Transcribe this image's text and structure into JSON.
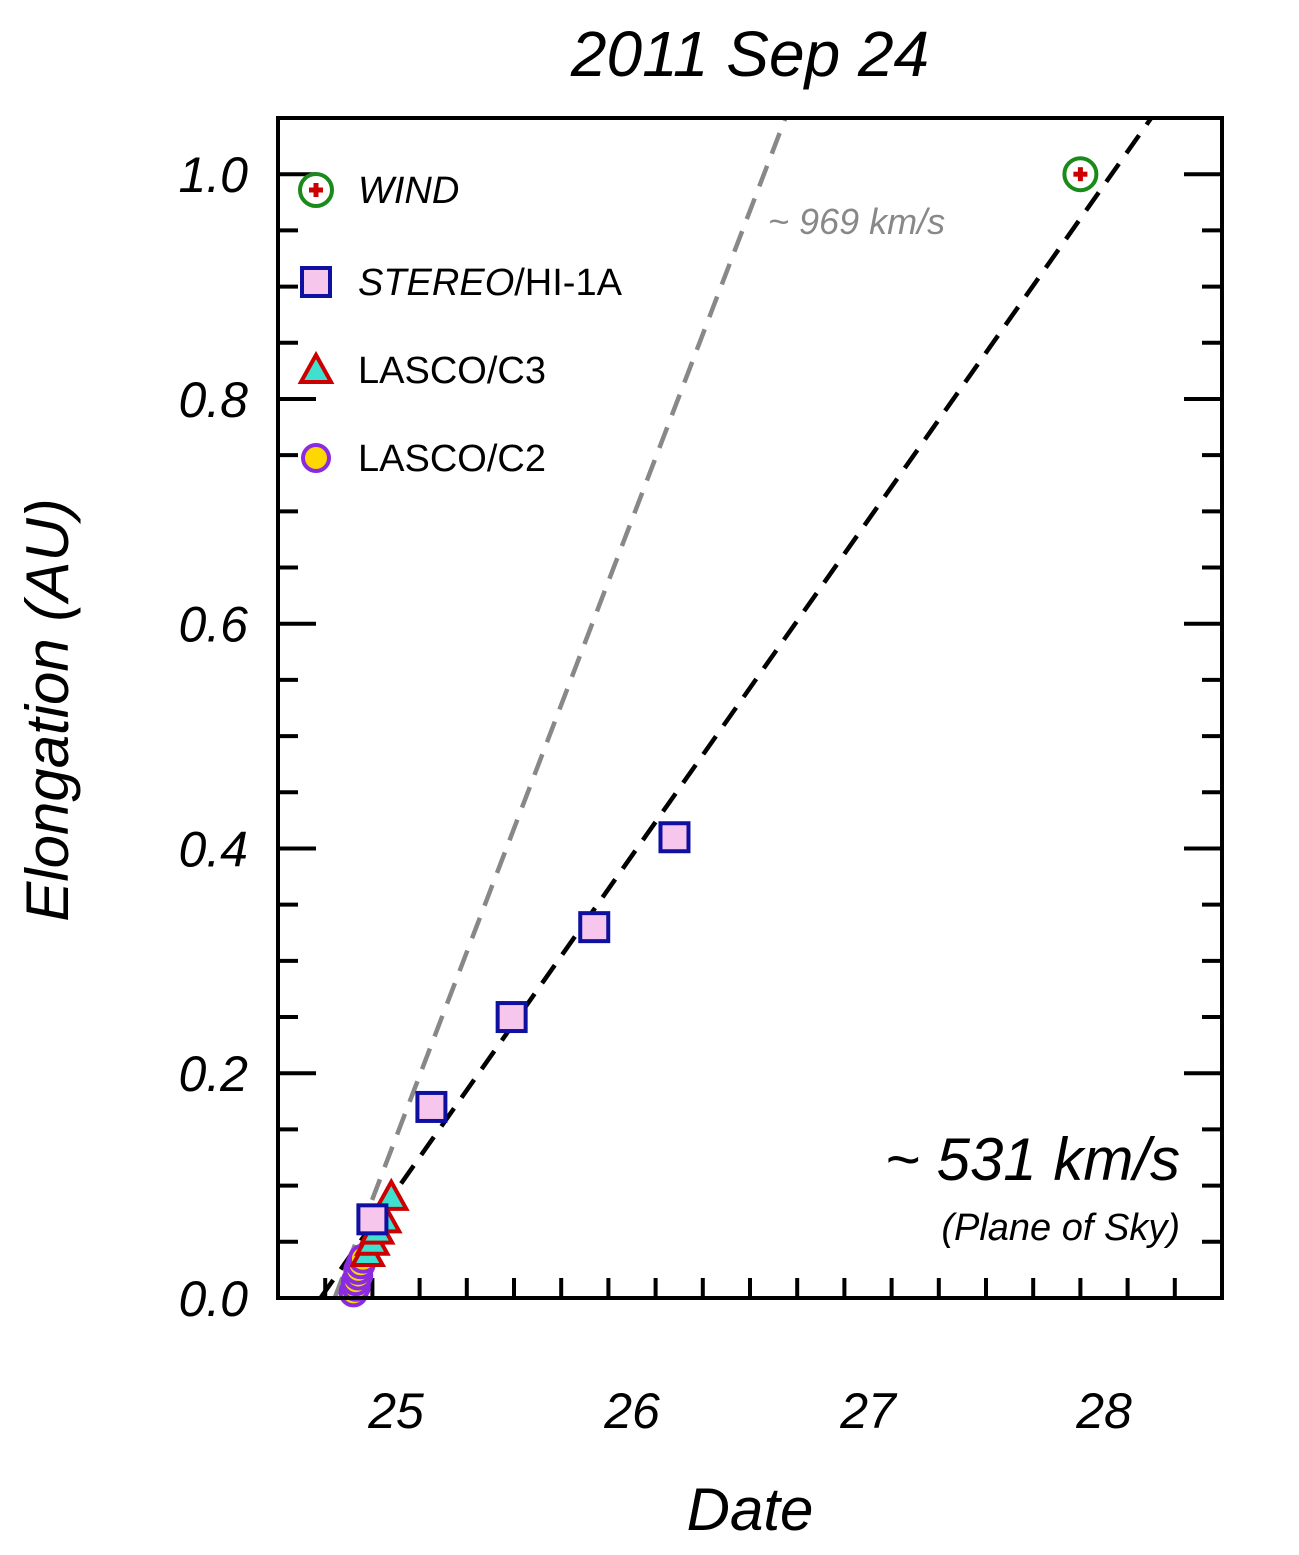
{
  "chart_data": {
    "type": "scatter",
    "title": "2011 Sep 24",
    "xlabel": "Date",
    "ylabel": "Elongation (AU)",
    "xlim": [
      24.5,
      28.5
    ],
    "ylim": [
      0.0,
      1.05
    ],
    "x_ticks": [
      25,
      26,
      27,
      28
    ],
    "y_ticks": [
      0.0,
      0.2,
      0.4,
      0.6,
      0.8,
      1.0
    ],
    "x_tick_labels": [
      "25",
      "26",
      "27",
      "28"
    ],
    "y_tick_labels": [
      "0.0",
      "0.2",
      "0.4",
      "0.6",
      "0.8",
      "1.0"
    ],
    "series": [
      {
        "name_parts": [
          {
            "text": "LASCO/C2",
            "italic": false
          }
        ],
        "marker": "circle",
        "fill": "#ffd700",
        "stroke": "#8a2be2",
        "points": [
          [
            24.82,
            0.005
          ],
          [
            24.83,
            0.01
          ],
          [
            24.83,
            0.015
          ],
          [
            24.84,
            0.02
          ],
          [
            24.84,
            0.025
          ],
          [
            24.85,
            0.03
          ],
          [
            24.86,
            0.035
          ]
        ]
      },
      {
        "name_parts": [
          {
            "text": "LASCO/C3",
            "italic": false
          }
        ],
        "marker": "triangle",
        "fill": "#40e0d0",
        "stroke": "#cc0000",
        "points": [
          [
            24.88,
            0.04
          ],
          [
            24.9,
            0.05
          ],
          [
            24.92,
            0.06
          ],
          [
            24.95,
            0.07
          ],
          [
            24.98,
            0.09
          ]
        ]
      },
      {
        "name_parts": [
          {
            "text": "STEREO",
            "italic": true
          },
          {
            "text": "/HI-1A",
            "italic": false
          }
        ],
        "marker": "square",
        "fill": "#f7c6ec",
        "stroke": "#1010a0",
        "points": [
          [
            24.9,
            0.07
          ],
          [
            25.15,
            0.17
          ],
          [
            25.49,
            0.25
          ],
          [
            25.84,
            0.33
          ],
          [
            26.18,
            0.41
          ]
        ]
      },
      {
        "name_parts": [
          {
            "text": "WIND",
            "italic": true
          }
        ],
        "marker": "circle-plus",
        "fill": "#ffffff",
        "stroke": "#1a8a1a",
        "points": [
          [
            27.9,
            1.0
          ]
        ]
      }
    ],
    "fit_lines": [
      {
        "label": "~ 969 km/s",
        "color": "#888888",
        "points": [
          [
            24.74,
            0.0
          ],
          [
            26.65,
            1.05
          ]
        ]
      },
      {
        "label": "~ 531 km/s",
        "color": "#000000",
        "points": [
          [
            24.68,
            0.0
          ],
          [
            28.2,
            1.05
          ]
        ]
      }
    ],
    "annotations": {
      "fast_speed": "~ 969 km/s",
      "main_speed": "~ 531 km/s",
      "main_note": "(Plane of Sky)"
    }
  }
}
